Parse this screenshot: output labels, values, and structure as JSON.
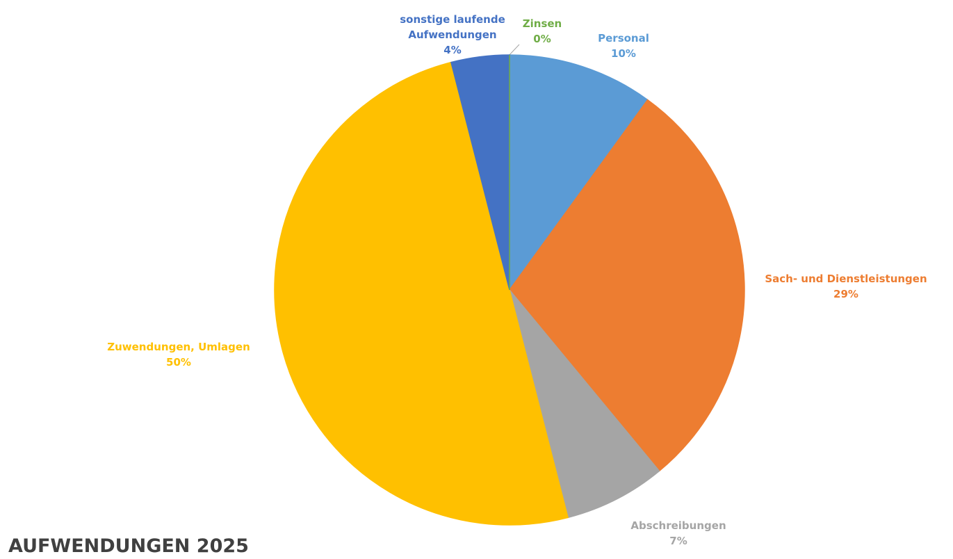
{
  "chart_data": {
    "type": "pie",
    "title": "AUFWENDUNGEN 2025",
    "categories": [
      "Personal",
      "Sach- und Dienstleistungen",
      "Abschreibungen",
      "Zuwendungen, Umlagen",
      "sonstige laufende Aufwendungen",
      "Zinsen"
    ],
    "values": [
      10,
      29,
      7,
      50,
      4,
      0
    ],
    "value_labels": [
      "10%",
      "29%",
      "7%",
      "50%",
      "4%",
      "0%"
    ],
    "colors": [
      "#5b9bd5",
      "#ed7d31",
      "#a5a5a5",
      "#ffc000",
      "#4472c4",
      "#70ad47"
    ]
  }
}
